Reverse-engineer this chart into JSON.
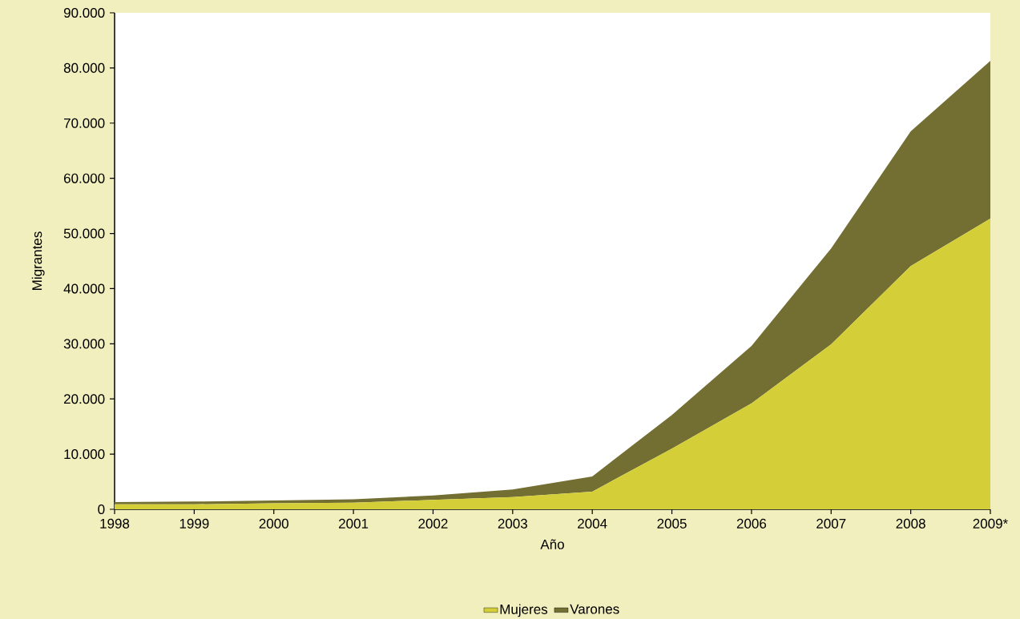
{
  "chart_data": {
    "type": "area",
    "stacked": true,
    "xlabel": "Año",
    "ylabel": "Migrantes",
    "categories": [
      "1998",
      "1999",
      "2000",
      "2001",
      "2002",
      "2003",
      "2004",
      "2005",
      "2006",
      "2007",
      "2008",
      "2009*"
    ],
    "series": [
      {
        "name": "Mujeres",
        "color": "#d4cf38",
        "values": [
          900,
          900,
          1100,
          1200,
          1700,
          2200,
          3200,
          11000,
          19200,
          29900,
          44100,
          52700
        ]
      },
      {
        "name": "Varones",
        "color": "#736f32",
        "values": [
          400,
          500,
          500,
          600,
          800,
          1400,
          2750,
          6100,
          10400,
          17400,
          24400,
          28600
        ]
      }
    ],
    "ylim": [
      0,
      90000
    ],
    "yticks": [
      {
        "value": 0,
        "label": "0"
      },
      {
        "value": 10000,
        "label": "10.000"
      },
      {
        "value": 20000,
        "label": "20.000"
      },
      {
        "value": 30000,
        "label": "30.000"
      },
      {
        "value": 40000,
        "label": "40.000"
      },
      {
        "value": 50000,
        "label": "50.000"
      },
      {
        "value": 60000,
        "label": "60.000"
      },
      {
        "value": 70000,
        "label": "70.000"
      },
      {
        "value": 80000,
        "label": "80.000"
      },
      {
        "value": 90000,
        "label": "90.000"
      }
    ],
    "legend": "bottom",
    "grid": false
  }
}
